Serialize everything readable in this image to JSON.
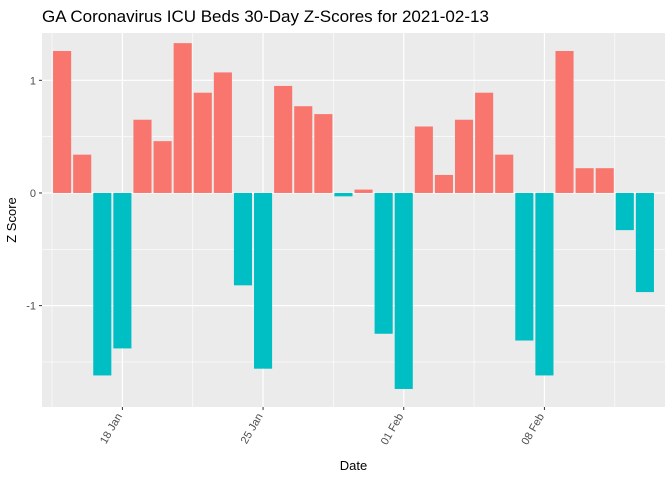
{
  "chart_data": {
    "type": "bar",
    "title": "GA Coronavirus ICU Beds 30-Day Z-Scores for 2021-02-13",
    "xlabel": "Date",
    "ylabel": "Z Score",
    "x_ticks": [
      {
        "date": "2021-01-18",
        "label": "18 Jan"
      },
      {
        "date": "2021-01-25",
        "label": "25 Jan"
      },
      {
        "date": "2021-02-01",
        "label": "01 Feb"
      },
      {
        "date": "2021-02-08",
        "label": "08 Feb"
      }
    ],
    "y_ticks": [
      -1,
      0,
      1
    ],
    "ylim": [
      -1.9,
      1.42
    ],
    "xlim": [
      "2021-01-14",
      "2021-02-14"
    ],
    "grid": true,
    "legend": "none",
    "colors": {
      "positive": "#F8766D",
      "negative": "#00BFC4",
      "panel": "#EBEBEB",
      "grid": "#FFFFFF"
    },
    "points": [
      {
        "date": "2021-01-15",
        "value": 1.26
      },
      {
        "date": "2021-01-16",
        "value": 0.34
      },
      {
        "date": "2021-01-17",
        "value": -1.62
      },
      {
        "date": "2021-01-18",
        "value": -1.38
      },
      {
        "date": "2021-01-19",
        "value": 0.65
      },
      {
        "date": "2021-01-20",
        "value": 0.46
      },
      {
        "date": "2021-01-21",
        "value": 1.33
      },
      {
        "date": "2021-01-22",
        "value": 0.89
      },
      {
        "date": "2021-01-23",
        "value": 1.07
      },
      {
        "date": "2021-01-24",
        "value": -0.82
      },
      {
        "date": "2021-01-25",
        "value": -1.56
      },
      {
        "date": "2021-01-26",
        "value": 0.95
      },
      {
        "date": "2021-01-27",
        "value": 0.77
      },
      {
        "date": "2021-01-28",
        "value": 0.7
      },
      {
        "date": "2021-01-29",
        "value": -0.03
      },
      {
        "date": "2021-01-30",
        "value": 0.03
      },
      {
        "date": "2021-01-31",
        "value": -1.25
      },
      {
        "date": "2021-02-01",
        "value": -1.74
      },
      {
        "date": "2021-02-02",
        "value": 0.59
      },
      {
        "date": "2021-02-03",
        "value": 0.16
      },
      {
        "date": "2021-02-04",
        "value": 0.65
      },
      {
        "date": "2021-02-05",
        "value": 0.89
      },
      {
        "date": "2021-02-06",
        "value": 0.34
      },
      {
        "date": "2021-02-07",
        "value": -1.31
      },
      {
        "date": "2021-02-08",
        "value": -1.62
      },
      {
        "date": "2021-02-09",
        "value": 1.26
      },
      {
        "date": "2021-02-10",
        "value": 0.22
      },
      {
        "date": "2021-02-11",
        "value": 0.22
      },
      {
        "date": "2021-02-12",
        "value": -0.33
      },
      {
        "date": "2021-02-13",
        "value": -0.88
      }
    ]
  }
}
